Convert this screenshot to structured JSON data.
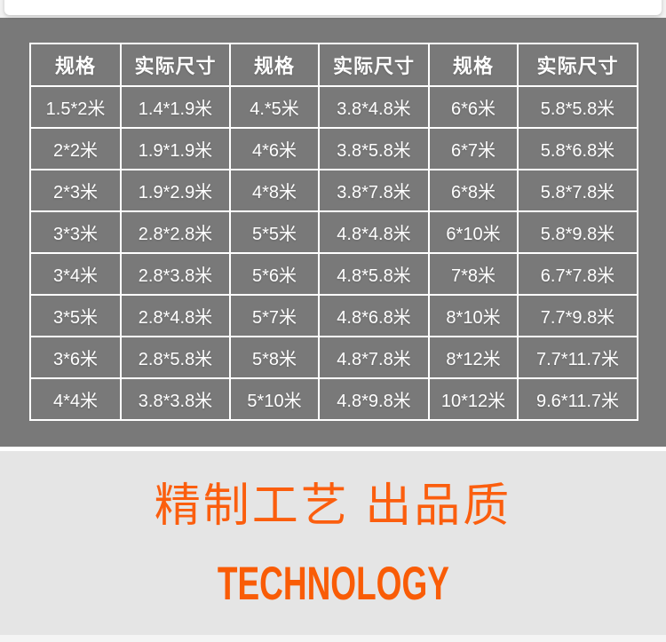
{
  "colors": {
    "table_bg": "#797979",
    "grid_line": "#ffffff",
    "cell_text": "#ffffff",
    "banner_bg": "#e5e5e5",
    "accent_orange_cn": "#fb5e0e",
    "accent_orange_en": "#f95c06"
  },
  "size_table": {
    "headers": [
      "规格",
      "实际尺寸",
      "规格",
      "实际尺寸",
      "规格",
      "实际尺寸"
    ],
    "rows": [
      [
        "1.5*2米",
        "1.4*1.9米",
        "4.*5米",
        "3.8*4.8米",
        "6*6米",
        "5.8*5.8米"
      ],
      [
        "2*2米",
        "1.9*1.9米",
        "4*6米",
        "3.8*5.8米",
        "6*7米",
        "5.8*6.8米"
      ],
      [
        "2*3米",
        "1.9*2.9米",
        "4*8米",
        "3.8*7.8米",
        "6*8米",
        "5.8*7.8米"
      ],
      [
        "3*3米",
        "2.8*2.8米",
        "5*5米",
        "4.8*4.8米",
        "6*10米",
        "5.8*9.8米"
      ],
      [
        "3*4米",
        "2.8*3.8米",
        "5*6米",
        "4.8*5.8米",
        "7*8米",
        "6.7*7.8米"
      ],
      [
        "3*5米",
        "2.8*4.8米",
        "5*7米",
        "4.8*6.8米",
        "8*10米",
        "7.7*9.8米"
      ],
      [
        "3*6米",
        "2.8*5.8米",
        "5*8米",
        "4.8*7.8米",
        "8*12米",
        "7.7*11.7米"
      ],
      [
        "4*4米",
        "3.8*3.8米",
        "5*10米",
        "4.8*9.8米",
        "10*12米",
        "9.6*11.7米"
      ]
    ]
  },
  "banner": {
    "title_cn": "精制工艺 出品质",
    "title_en": "TECHNOLOGY"
  }
}
